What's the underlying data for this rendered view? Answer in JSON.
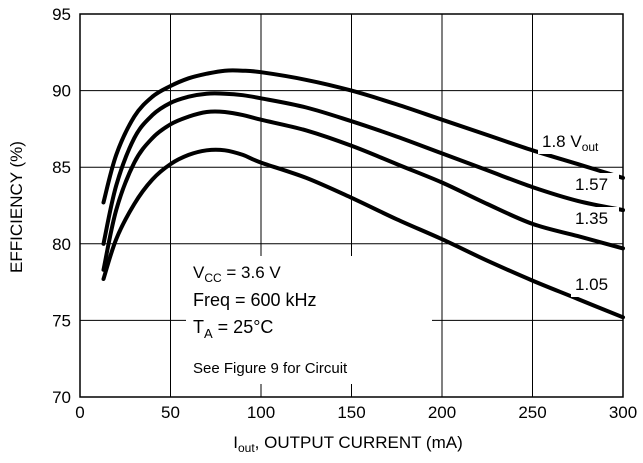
{
  "chart_data": {
    "type": "line",
    "xlabel_main": "I",
    "xlabel_sub": "out",
    "xlabel_rest": ", OUTPUT CURRENT (mA)",
    "ylabel": "EFFICIENCY (%)",
    "xlim": [
      0,
      300
    ],
    "ylim": [
      70,
      95
    ],
    "xticks": [
      "0",
      "50",
      "100",
      "150",
      "200",
      "250",
      "300"
    ],
    "yticks": [
      "70",
      "75",
      "80",
      "85",
      "90",
      "95"
    ],
    "grid": true,
    "series": [
      {
        "name": "1.8 Vout",
        "label_main": "1.8 V",
        "label_sub": "out",
        "x": [
          13,
          20,
          30,
          40,
          50,
          60,
          70,
          80,
          90,
          100,
          125,
          150,
          175,
          200,
          225,
          250,
          275,
          300
        ],
        "y": [
          82.7,
          85.8,
          88.3,
          89.6,
          90.3,
          90.8,
          91.1,
          91.3,
          91.3,
          91.2,
          90.7,
          90.0,
          89.1,
          88.1,
          87.1,
          86.1,
          85.2,
          84.3
        ]
      },
      {
        "name": "1.57",
        "label_main": "1.57",
        "label_sub": "",
        "x": [
          13,
          20,
          30,
          40,
          50,
          60,
          70,
          80,
          90,
          100,
          125,
          150,
          175,
          200,
          225,
          250,
          275,
          300
        ],
        "y": [
          80.0,
          83.8,
          86.9,
          88.4,
          89.2,
          89.6,
          89.8,
          89.8,
          89.7,
          89.5,
          88.9,
          88.0,
          87.0,
          85.9,
          84.8,
          83.7,
          82.8,
          82.2
        ]
      },
      {
        "name": "1.35",
        "label_main": "1.35",
        "label_sub": "",
        "x": [
          13,
          20,
          30,
          40,
          50,
          60,
          70,
          80,
          90,
          100,
          125,
          150,
          175,
          200,
          225,
          250,
          275,
          300
        ],
        "y": [
          78.3,
          82.2,
          85.3,
          86.9,
          87.8,
          88.3,
          88.6,
          88.6,
          88.4,
          88.1,
          87.4,
          86.4,
          85.2,
          84.0,
          82.6,
          81.3,
          80.5,
          79.7
        ]
      },
      {
        "name": "1.05",
        "label_main": "1.05",
        "label_sub": "",
        "x": [
          13,
          20,
          30,
          40,
          50,
          60,
          70,
          80,
          90,
          100,
          125,
          150,
          175,
          200,
          225,
          250,
          275,
          300
        ],
        "y": [
          77.7,
          80.3,
          82.6,
          84.2,
          85.2,
          85.8,
          86.1,
          86.1,
          85.8,
          85.3,
          84.3,
          83.0,
          81.6,
          80.3,
          78.9,
          77.6,
          76.4,
          75.2
        ]
      }
    ],
    "conditions": {
      "vcc_main": "V",
      "vcc_sub": "CC",
      "vcc_rest": " = 3.6 V",
      "freq": "Freq = 600 kHz",
      "ta_main": "T",
      "ta_sub": "A",
      "ta_rest": " = 25°C",
      "note": "See Figure 9 for Circuit"
    }
  }
}
